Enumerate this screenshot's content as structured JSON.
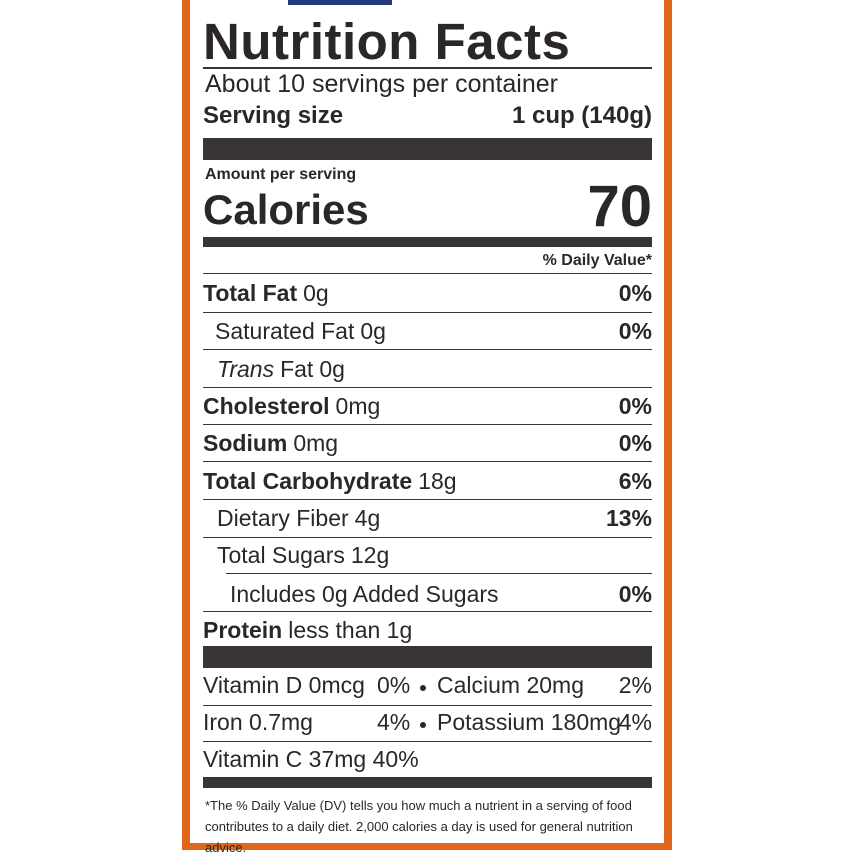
{
  "title": "Nutrition Facts",
  "servings": "About 10 servings per container",
  "serving_size": {
    "label": "Serving size",
    "value": "1 cup (140g)"
  },
  "amount_per_serving": "Amount per serving",
  "calories": {
    "label": "Calories",
    "value": "70"
  },
  "dv_header": "% Daily Value*",
  "nutrients": [
    {
      "name": "Total Fat",
      "amount": "0g",
      "dv": "0%"
    },
    {
      "name": "Saturated Fat",
      "amount": "0g",
      "dv": "0%"
    },
    {
      "prefix": "Trans",
      "name": "Fat",
      "amount": "0g"
    },
    {
      "name": "Cholesterol",
      "amount": "0mg",
      "dv": "0%"
    },
    {
      "name": "Sodium",
      "amount": "0mg",
      "dv": "0%"
    },
    {
      "name": "Total Carbohydrate",
      "amount": "18g",
      "dv": "6%"
    },
    {
      "name": "Dietary Fiber",
      "amount": "4g",
      "dv": "13%"
    },
    {
      "name": "Total Sugars",
      "amount": "12g"
    },
    {
      "name": "Includes 0g Added Sugars",
      "dv": "0%"
    },
    {
      "name": "Protein",
      "amount": "less than 1g"
    }
  ],
  "vitamins": [
    {
      "name": "Vitamin D",
      "amount": "0mcg",
      "dv": "0%"
    },
    {
      "name": "Calcium",
      "amount": "20mg",
      "dv": "2%"
    },
    {
      "name": "Iron",
      "amount": "0.7mg",
      "dv": "4%"
    },
    {
      "name": "Potassium",
      "amount": "180mg",
      "dv": "4%"
    },
    {
      "name": "Vitamin C",
      "amount": "37mg",
      "dv": "40%"
    }
  ],
  "footnote": "*The % Daily Value (DV) tells you how much a nutrient in a serving of food contributes to a daily diet. 2,000 calories a day is used for general nutrition advice."
}
